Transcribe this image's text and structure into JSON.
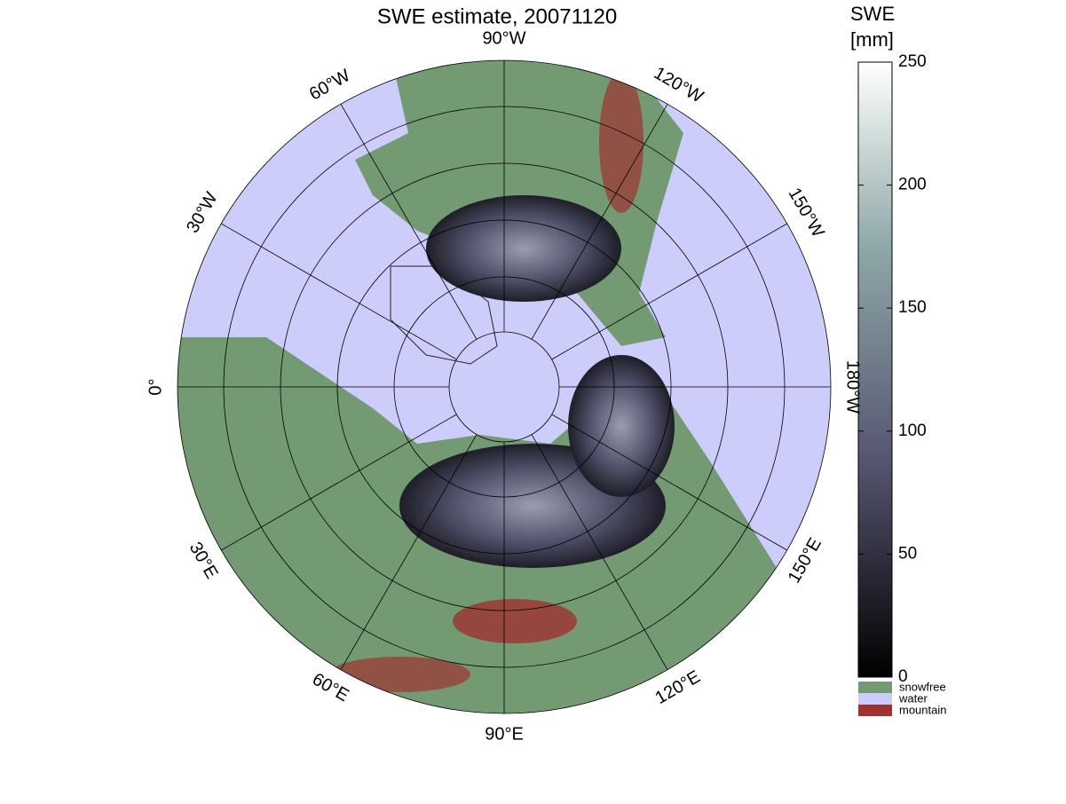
{
  "map": {
    "title": "SWE estimate, 20071120",
    "meridians": [
      {
        "lon": -90,
        "label": "90°W"
      },
      {
        "lon": -120,
        "label": "120°W"
      },
      {
        "lon": -150,
        "label": "150°W"
      },
      {
        "lon": 180,
        "label": "180°W"
      },
      {
        "lon": 150,
        "label": "150°E"
      },
      {
        "lon": 120,
        "label": "120°E"
      },
      {
        "lon": 90,
        "label": "90°E"
      },
      {
        "lon": 60,
        "label": "60°E"
      },
      {
        "lon": 30,
        "label": "30°E"
      },
      {
        "lon": 0,
        "label": "0°"
      },
      {
        "lon": -30,
        "label": "30°W"
      },
      {
        "lon": -60,
        "label": "60°W"
      }
    ],
    "colorbar": {
      "title": [
        "SWE",
        "[mm]"
      ],
      "lim": [
        0,
        250
      ],
      "ticks": [
        0,
        50,
        100,
        150,
        200,
        250
      ]
    },
    "legend": [
      {
        "label": "snowfree",
        "color": "#739a72"
      },
      {
        "label": "water",
        "color": "#cccdfb"
      },
      {
        "label": "mountain",
        "color": "#9e3231"
      }
    ]
  }
}
